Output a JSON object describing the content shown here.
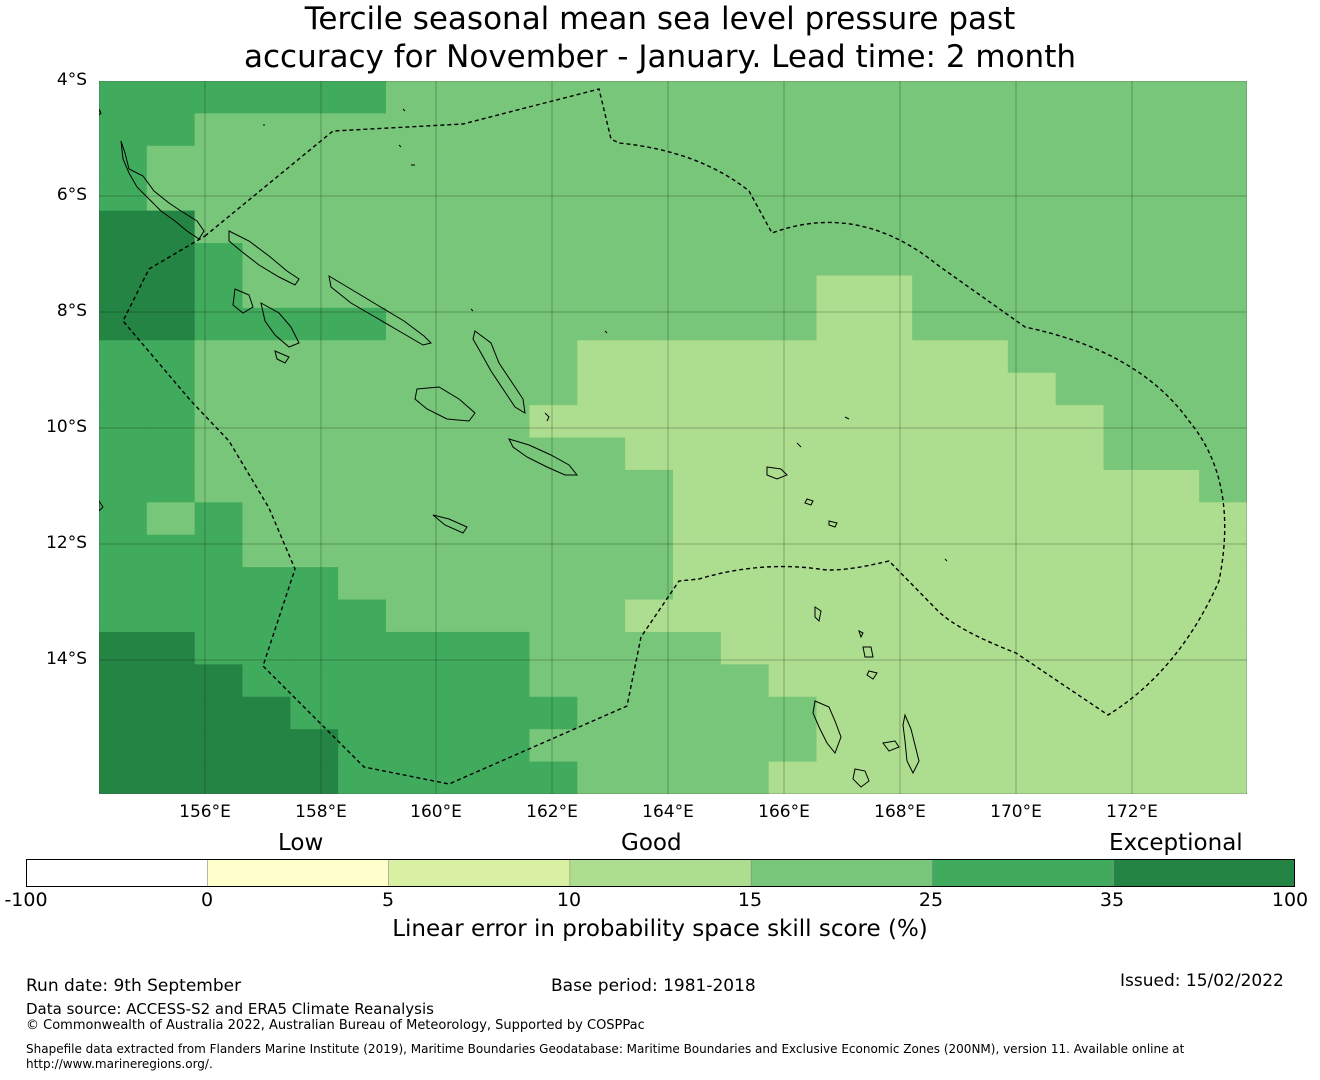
{
  "title": {
    "line1": "Tercile seasonal mean sea level pressure past",
    "line2": "accuracy for November - January. Lead time: 2 month"
  },
  "map": {
    "lat_labels": [
      "4°S",
      "6°S",
      "8°S",
      "10°S",
      "12°S",
      "14°S"
    ],
    "lon_labels": [
      "156°E",
      "158°E",
      "160°E",
      "162°E",
      "164°E",
      "166°E",
      "168°E",
      "170°E",
      "172°E"
    ],
    "grid": true,
    "eez_boundary_style": "dashed",
    "coastline_color": "#000000"
  },
  "colorbar": {
    "categories": [
      "Low",
      "Good",
      "Exceptional"
    ],
    "ticks": [
      "-100",
      "0",
      "5",
      "10",
      "15",
      "25",
      "35",
      "100"
    ],
    "colors": [
      "#ffffff",
      "#ffffcc",
      "#d9f0a3",
      "#addd8e",
      "#78c679",
      "#41ab5d",
      "#238443"
    ],
    "label": "Linear error in probability space skill score (%)"
  },
  "footer": {
    "run_date": "Run date: 9th September",
    "base_period": "Base period: 1981-2018",
    "issued": "Issued: 15/02/2022",
    "data_source": "Data source: ACCESS-S2 and ERA5 Climate Reanalysis",
    "copyright": "© Commonwealth of Australia 2022, Australian Bureau of Meteorology, Supported by COSPPac",
    "shapefile_line1": "Shapefile data extracted from Flanders Marine Institute (2019), Maritime Boundaries Geodatabase: Maritime Boundaries and Exclusive Economic Zones (200NM), version 11. Available online at",
    "shapefile_line2": "http://www.marineregions.org/."
  }
}
